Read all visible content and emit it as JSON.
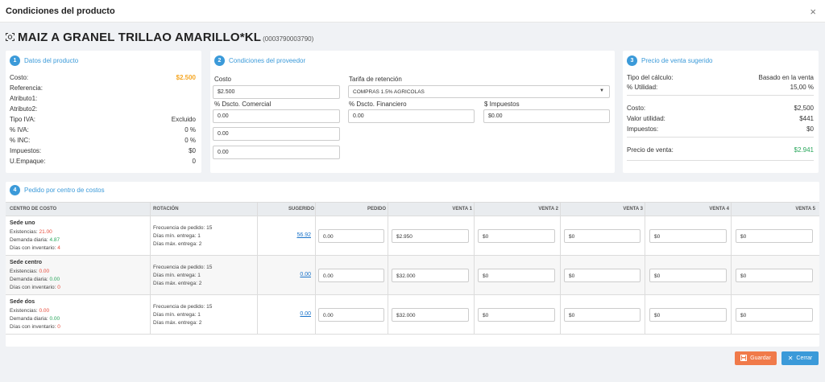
{
  "modal": {
    "title": "Condiciones del producto",
    "close_glyph": "×"
  },
  "product": {
    "icon": "barcode-icon",
    "name": "MAIZ A GRANEL TRILLAO AMARILLO*KL",
    "code": "(0003790003790)"
  },
  "card1": {
    "badge": "1",
    "title": "Datos del producto",
    "rows": [
      {
        "label": "Costo:",
        "value": "$2.500"
      },
      {
        "label": "Referencia:",
        "value": ""
      },
      {
        "label": "Atributo1:",
        "value": ""
      },
      {
        "label": "Atributo2:",
        "value": ""
      },
      {
        "label": "Tipo IVA:",
        "value": "Excluido"
      },
      {
        "label": "% IVA:",
        "value": "0 %"
      },
      {
        "label": "% INC:",
        "value": "0 %"
      },
      {
        "label": "Impuestos:",
        "value": "$0"
      },
      {
        "label": "U.Empaque:",
        "value": "0"
      }
    ]
  },
  "card2": {
    "badge": "2",
    "title": "Condiciones del proveedor",
    "costo_label": "Costo",
    "costo_value": "$2.500",
    "tarifa_label": "Tarifa de retención",
    "tarifa_value": "COMPRAS 1.5% AGRICOLAS",
    "dscto_comercial_label": "% Dscto. Comercial",
    "dscto_comercial_values": [
      "0.00",
      "0.00",
      "0.00"
    ],
    "dscto_financiero_label": "% Dscto. Financiero",
    "dscto_financiero_value": "0.00",
    "impuestos_label": "$ Impuestos",
    "impuestos_value": "$0.00"
  },
  "card3": {
    "badge": "3",
    "title": "Precio de venta sugerido",
    "tipo_label": "Tipo del cálculo:",
    "tipo_value": "Basado en la venta",
    "utilidad_pct_label": "% Utilidad:",
    "utilidad_pct_value": "15,00 %",
    "costo_label": "Costo:",
    "costo_value": "$2,500",
    "valor_utilidad_label": "Valor utilidad:",
    "valor_utilidad_value": "$441",
    "impuestos_label": "Impuestos:",
    "impuestos_value": "$0",
    "precio_label": "Precio de venta:",
    "precio_value": "$2.941"
  },
  "card4": {
    "badge": "4",
    "title": "Pedido por centro de costos",
    "headers": [
      "CENTRO DE COSTO",
      "ROTACIÓN",
      "SUGERIDO",
      "PEDIDO",
      "VENTA 1",
      "VENTA 2",
      "VENTA 3",
      "VENTA 4",
      "VENTA 5"
    ],
    "rows": [
      {
        "sede": "Sede uno",
        "existencias_label": "Existencias:",
        "existencias": "21.00",
        "demanda_label": "Demanda diaria:",
        "demanda": "4.87",
        "dias_label": "Días con inventario:",
        "dias": "4",
        "frecuencia": "Frecuencia de pedido: 15",
        "dias_min": "Días mín. entrega: 1",
        "dias_max": "Días máx. entrega: 2",
        "sugerido": "56.92",
        "pedido": "0.00",
        "ventas": [
          "$2.950",
          "$0",
          "$0",
          "$0",
          "$0"
        ]
      },
      {
        "sede": "Sede centro",
        "existencias_label": "Existencias:",
        "existencias": "0.00",
        "demanda_label": "Demanda diaria:",
        "demanda": "0.00",
        "dias_label": "Días con inventario:",
        "dias": "0",
        "frecuencia": "Frecuencia de pedido: 15",
        "dias_min": "Días mín. entrega: 1",
        "dias_max": "Días máx. entrega: 2",
        "sugerido": "0.00",
        "pedido": "0.00",
        "ventas": [
          "$32.000",
          "$0",
          "$0",
          "$0",
          "$0"
        ]
      },
      {
        "sede": "Sede dos",
        "existencias_label": "Existencias:",
        "existencias": "0.00",
        "demanda_label": "Demanda diaria:",
        "demanda": "0.00",
        "dias_label": "Días con inventario:",
        "dias": "0",
        "frecuencia": "Frecuencia de pedido: 15",
        "dias_min": "Días mín. entrega: 1",
        "dias_max": "Días máx. entrega: 2",
        "sugerido": "0.00",
        "pedido": "0.00",
        "ventas": [
          "$32.000",
          "$0",
          "$0",
          "$0",
          "$0"
        ]
      }
    ]
  },
  "footer": {
    "save_label": "Guardar",
    "close_label": "Cerrar"
  },
  "colors": {
    "accent": "#3b9ad9",
    "save": "#f07a4a",
    "gold": "#f5a623",
    "green": "#27a65a",
    "red": "#e74c3c"
  }
}
